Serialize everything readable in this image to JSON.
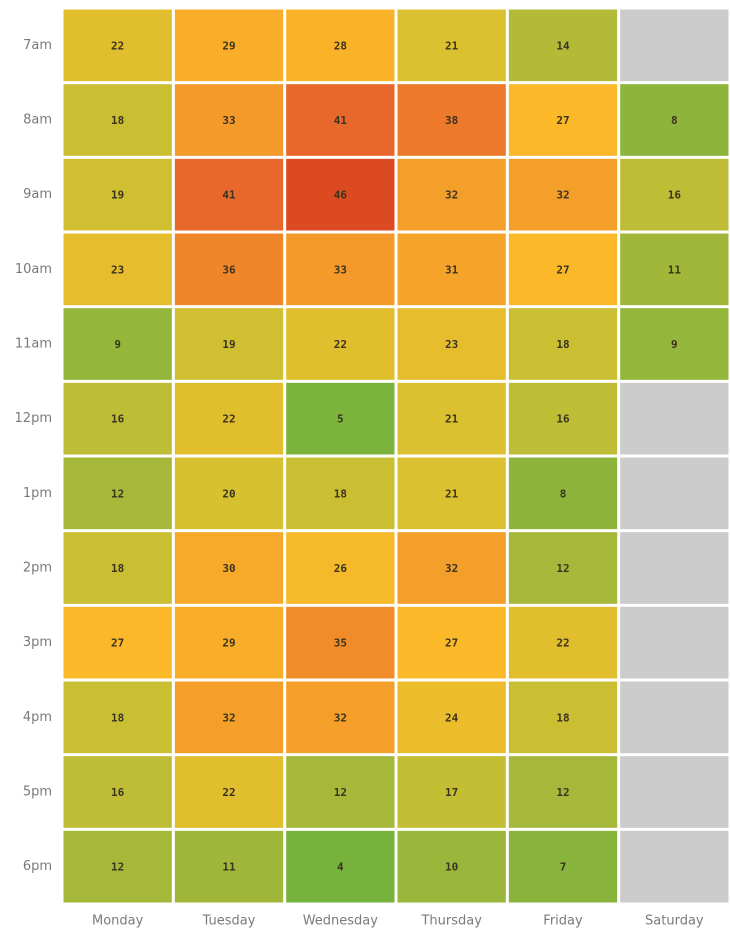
{
  "chart_data": {
    "type": "heatmap",
    "x_categories": [
      "Monday",
      "Tuesday",
      "Wednesday",
      "Thursday",
      "Friday",
      "Saturday"
    ],
    "y_categories": [
      "7am",
      "8am",
      "9am",
      "10am",
      "11am",
      "12pm",
      "1pm",
      "2pm",
      "3pm",
      "4pm",
      "5pm",
      "6pm"
    ],
    "values": [
      [
        22,
        29,
        28,
        21,
        14,
        null
      ],
      [
        18,
        33,
        41,
        38,
        27,
        8
      ],
      [
        19,
        41,
        46,
        32,
        32,
        16
      ],
      [
        23,
        36,
        33,
        31,
        27,
        11
      ],
      [
        9,
        19,
        22,
        23,
        18,
        9
      ],
      [
        16,
        22,
        5,
        21,
        16,
        null
      ],
      [
        12,
        20,
        18,
        21,
        8,
        null
      ],
      [
        18,
        30,
        26,
        32,
        12,
        null
      ],
      [
        27,
        29,
        35,
        27,
        22,
        null
      ],
      [
        18,
        32,
        32,
        24,
        18,
        null
      ],
      [
        16,
        22,
        12,
        17,
        12,
        null
      ],
      [
        12,
        11,
        4,
        10,
        7,
        null
      ]
    ],
    "colorscale": [
      {
        "value": 4,
        "color": "#76b23c"
      },
      {
        "value": 12,
        "color": "#a6b83a"
      },
      {
        "value": 20,
        "color": "#d6c130"
      },
      {
        "value": 27,
        "color": "#fbb828"
      },
      {
        "value": 33,
        "color": "#f39a2a"
      },
      {
        "value": 41,
        "color": "#e8672a"
      },
      {
        "value": 46,
        "color": "#dc4a22"
      }
    ],
    "null_color": "#cccccc"
  }
}
